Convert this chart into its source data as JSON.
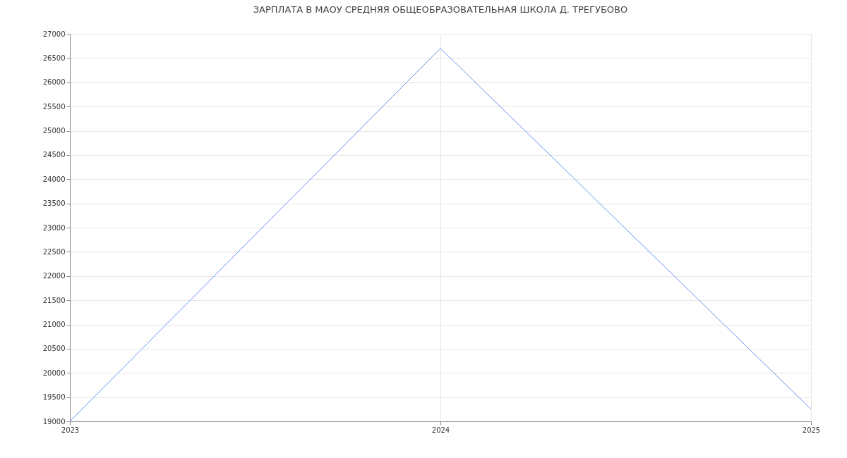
{
  "chart_data": {
    "type": "line",
    "title": "ЗАРПЛАТА В МАОУ СРЕДНЯЯ ОБЩЕОБРАЗОВАТЕЛЬНАЯ ШКОЛА Д. ТРЕГУБОВО",
    "x": [
      2023,
      2024,
      2025
    ],
    "series": [
      {
        "color": "#6495ed",
        "values": [
          19000,
          26700,
          19250
        ]
      }
    ],
    "xlim": [
      2023,
      2025
    ],
    "xticks": [
      2023,
      2024,
      2025
    ],
    "ylim": [
      19000,
      27000
    ],
    "yticks": [
      19000,
      19500,
      20000,
      20500,
      21000,
      21500,
      22000,
      22500,
      23000,
      23500,
      24000,
      24500,
      25000,
      25500,
      26000,
      26500,
      27000
    ],
    "grid": true,
    "marker": "none",
    "line_style": "solid"
  }
}
